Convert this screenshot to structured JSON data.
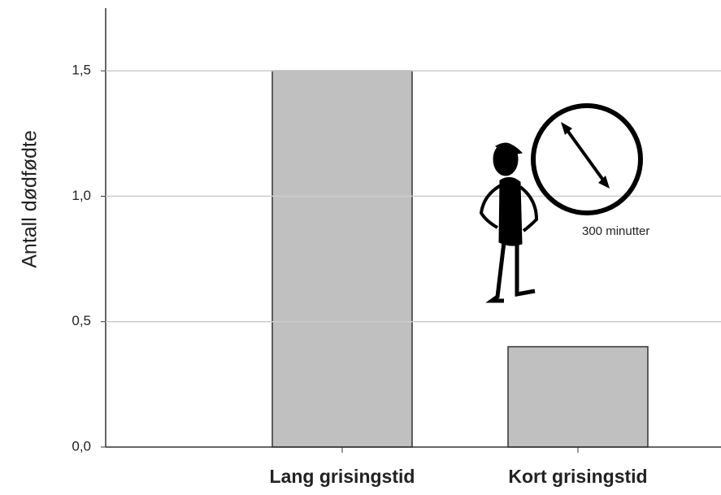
{
  "chart_data": {
    "type": "bar",
    "y_label": "Antall dødfødte",
    "categories": [
      "Lang grisingstid",
      "Kort grisingstid"
    ],
    "values": [
      1.5,
      0.4
    ],
    "color": "#c0c0c0",
    "ylim": [
      0,
      1.75
    ],
    "yticks": [
      {
        "value": 0,
        "label": "0,0"
      },
      {
        "value": 0.5,
        "label": "0,5"
      },
      {
        "value": 1,
        "label": "1,0"
      },
      {
        "value": 1.5,
        "label": "1,5"
      }
    ],
    "grid": true,
    "annotation": "300 minutter"
  }
}
